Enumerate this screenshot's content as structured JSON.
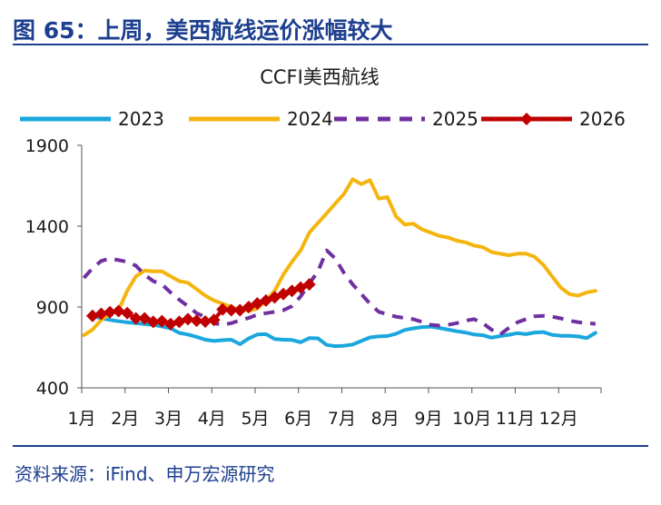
{
  "figure_title": "图 65：上周，美西航线运价涨幅较大",
  "source_note": "资料来源：iFind、申万宏源研究",
  "chart_data": {
    "type": "line",
    "title": "CCFI美西航线",
    "xlabel": "",
    "ylabel": "",
    "ylim": [
      400,
      1900
    ],
    "yticks": [
      400,
      900,
      1400,
      1900
    ],
    "xlim": [
      1,
      12.98
    ],
    "xtick_labels": [
      "1月",
      "2月",
      "3月",
      "4月",
      "5月",
      "6月",
      "7月",
      "8月",
      "9月",
      "10月",
      "11月",
      "12月"
    ],
    "legend_position": "top",
    "grid": false,
    "series": [
      {
        "name": "2023",
        "color": "#1aa7dd",
        "style": "solid",
        "x": [
          1.25,
          1.45,
          1.65,
          1.85,
          2.05,
          2.25,
          2.45,
          2.65,
          2.85,
          3.05,
          3.25,
          3.45,
          3.65,
          3.85,
          4.05,
          4.25,
          4.45,
          4.65,
          4.85,
          5.05,
          5.25,
          5.45,
          5.65,
          5.85,
          6.05,
          6.25,
          6.45,
          6.65,
          6.85,
          7.05,
          7.25,
          7.45,
          7.65,
          7.85,
          8.05,
          8.25,
          8.45,
          8.65,
          8.85,
          9.05,
          9.25,
          9.45,
          9.65,
          9.85,
          10.05,
          10.25,
          10.45,
          10.65,
          10.85,
          11.05,
          11.25,
          11.45,
          11.65,
          11.85,
          12.05,
          12.25,
          12.45,
          12.65,
          12.85
        ],
        "values": [
          845,
          830,
          820,
          812,
          805,
          800,
          795,
          790,
          780,
          768,
          740,
          730,
          715,
          698,
          690,
          695,
          698,
          670,
          705,
          730,
          732,
          702,
          698,
          696,
          682,
          708,
          706,
          665,
          658,
          660,
          668,
          690,
          712,
          718,
          720,
          735,
          758,
          768,
          776,
          778,
          770,
          760,
          750,
          742,
          730,
          725,
          710,
          720,
          728,
          738,
          732,
          742,
          745,
          728,
          722,
          722,
          718,
          708,
          740
        ]
      },
      {
        "name": "2024",
        "color": "#f5b50f",
        "style": "solid",
        "x": [
          1.05,
          1.25,
          1.45,
          1.65,
          1.85,
          2.05,
          2.25,
          2.45,
          2.65,
          2.85,
          3.05,
          3.25,
          3.45,
          3.65,
          3.85,
          4.05,
          4.25,
          4.45,
          4.65,
          4.85,
          5.05,
          5.25,
          5.45,
          5.65,
          5.85,
          6.05,
          6.25,
          6.45,
          6.65,
          6.85,
          7.05,
          7.25,
          7.45,
          7.65,
          7.85,
          8.05,
          8.25,
          8.45,
          8.65,
          8.85,
          9.05,
          9.25,
          9.45,
          9.65,
          9.85,
          10.05,
          10.25,
          10.45,
          10.65,
          10.85,
          11.05,
          11.25,
          11.45,
          11.65,
          11.85,
          12.05,
          12.25,
          12.45,
          12.65,
          12.85
        ],
        "values": [
          725,
          760,
          820,
          860,
          880,
          1000,
          1090,
          1125,
          1120,
          1120,
          1090,
          1060,
          1050,
          1010,
          970,
          940,
          920,
          900,
          885,
          875,
          890,
          940,
          1000,
          1100,
          1180,
          1250,
          1360,
          1420,
          1480,
          1540,
          1600,
          1690,
          1660,
          1685,
          1570,
          1580,
          1460,
          1410,
          1415,
          1380,
          1360,
          1340,
          1330,
          1310,
          1300,
          1280,
          1270,
          1240,
          1230,
          1220,
          1230,
          1230,
          1210,
          1160,
          1090,
          1020,
          980,
          970,
          990,
          1000
        ]
      },
      {
        "name": "2025",
        "color": "#7030a0",
        "style": "dashed",
        "x": [
          1.05,
          1.25,
          1.45,
          1.65,
          1.85,
          2.05,
          2.25,
          2.45,
          2.65,
          2.85,
          3.05,
          3.25,
          3.45,
          3.65,
          3.85,
          4.05,
          4.25,
          4.45,
          4.65,
          4.85,
          5.05,
          5.25,
          5.45,
          5.65,
          5.85,
          6.05,
          6.25,
          6.45,
          6.65,
          6.85,
          7.05,
          7.25,
          7.45,
          7.65,
          7.85,
          8.05,
          8.25,
          8.45,
          8.65,
          8.85,
          9.05,
          9.25,
          9.45,
          9.65,
          9.85,
          10.05,
          10.25,
          10.45,
          10.65,
          10.85,
          11.05,
          11.25,
          11.45,
          11.65,
          11.85,
          12.05,
          12.25,
          12.45,
          12.65,
          12.85
        ],
        "values": [
          1080,
          1140,
          1185,
          1200,
          1190,
          1180,
          1155,
          1100,
          1060,
          1040,
          990,
          945,
          905,
          862,
          838,
          800,
          790,
          800,
          818,
          832,
          852,
          862,
          870,
          880,
          905,
          965,
          1045,
          1120,
          1250,
          1200,
          1110,
          1040,
          980,
          920,
          870,
          855,
          840,
          832,
          824,
          808,
          790,
          785,
          790,
          800,
          815,
          825,
          800,
          760,
          730,
          770,
          805,
          825,
          842,
          845,
          840,
          830,
          815,
          806,
          800,
          796
        ]
      },
      {
        "name": "2026",
        "color": "#c00000",
        "style": "solid",
        "marker": "diamond",
        "x": [
          1.25,
          1.45,
          1.65,
          1.85,
          2.05,
          2.25,
          2.45,
          2.65,
          2.85,
          3.05,
          3.25,
          3.45,
          3.65,
          3.85,
          4.05,
          4.25,
          4.45,
          4.65,
          4.85,
          5.05,
          5.25,
          5.45,
          5.65,
          5.85,
          6.05,
          6.25
        ],
        "values": [
          845,
          858,
          868,
          875,
          862,
          830,
          830,
          808,
          812,
          795,
          808,
          825,
          815,
          810,
          820,
          885,
          880,
          880,
          900,
          922,
          940,
          960,
          980,
          1000,
          1020,
          1040
        ]
      }
    ]
  }
}
